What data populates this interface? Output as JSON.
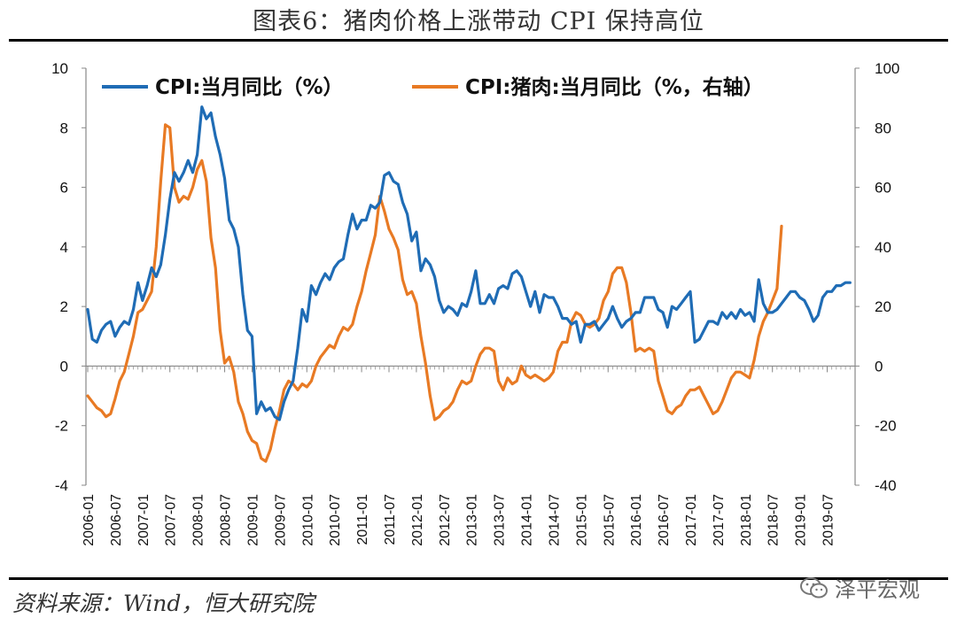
{
  "title": "图表6：猪肉价格上涨带动 CPI 保持高位",
  "source": "资料来源：Wind，恒大研究院",
  "watermark": "泽平宏观",
  "chart_data": {
    "type": "line",
    "x_ticks": [
      "2006-01",
      "2006-07",
      "2007-01",
      "2007-07",
      "2008-01",
      "2008-07",
      "2009-01",
      "2009-07",
      "2010-01",
      "2010-07",
      "2011-01",
      "2011-07",
      "2012-01",
      "2012-07",
      "2013-01",
      "2013-07",
      "2014-01",
      "2014-07",
      "2015-01",
      "2015-07",
      "2016-01",
      "2016-07",
      "2017-01",
      "2017-07",
      "2018-01",
      "2018-07",
      "2019-01",
      "2019-07"
    ],
    "y_left": {
      "range": [
        -4,
        10
      ],
      "ticks": [
        "10",
        "8",
        "6",
        "4",
        "2",
        "0",
        "-2",
        "-4"
      ]
    },
    "y_right": {
      "range": [
        -40,
        100
      ],
      "ticks": [
        "100",
        "80",
        "60",
        "40",
        "20",
        "0",
        "-20",
        "-40"
      ]
    },
    "legend_placement": "top",
    "series": [
      {
        "name": "CPI:当月同比（%）",
        "axis": "left",
        "color": "#1f6cb5",
        "values": [
          1.9,
          0.9,
          0.8,
          1.2,
          1.4,
          1.5,
          1.0,
          1.3,
          1.5,
          1.4,
          1.9,
          2.8,
          2.2,
          2.7,
          3.3,
          3.0,
          3.4,
          4.4,
          5.6,
          6.5,
          6.2,
          6.5,
          6.9,
          6.5,
          7.1,
          8.7,
          8.3,
          8.5,
          7.7,
          7.1,
          6.3,
          4.9,
          4.6,
          4.0,
          2.4,
          1.2,
          1.0,
          -1.6,
          -1.2,
          -1.5,
          -1.4,
          -1.7,
          -1.8,
          -1.2,
          -0.8,
          -0.5,
          0.6,
          1.9,
          1.5,
          2.7,
          2.4,
          2.8,
          3.1,
          2.9,
          3.3,
          3.5,
          3.6,
          4.4,
          5.1,
          4.6,
          4.9,
          4.9,
          5.4,
          5.3,
          5.5,
          6.4,
          6.5,
          6.2,
          6.1,
          5.5,
          5.1,
          4.2,
          4.5,
          3.2,
          3.6,
          3.4,
          3.0,
          2.2,
          1.8,
          2.0,
          1.9,
          1.7,
          2.1,
          2.0,
          2.5,
          3.2,
          2.1,
          2.1,
          2.4,
          2.1,
          2.6,
          2.7,
          2.6,
          3.1,
          3.2,
          3.0,
          2.5,
          2.0,
          2.5,
          1.8,
          2.4,
          2.3,
          2.3,
          2.0,
          1.6,
          1.6,
          1.4,
          1.5,
          0.8,
          1.4,
          1.4,
          1.5,
          1.2,
          1.4,
          1.6,
          2.0,
          1.6,
          1.3,
          1.5,
          1.6,
          1.8,
          1.8,
          2.3,
          2.3,
          2.3,
          1.9,
          1.8,
          1.3,
          2.0,
          1.9,
          2.1,
          2.3,
          2.5,
          0.8,
          0.9,
          1.2,
          1.5,
          1.5,
          1.4,
          1.8,
          1.6,
          1.8,
          1.6,
          1.9,
          1.7,
          1.8,
          1.5,
          2.9,
          2.1,
          1.8,
          1.8,
          1.9,
          2.1,
          2.3,
          2.5,
          2.5,
          2.3,
          2.2,
          1.9,
          1.5,
          1.7,
          2.3,
          2.5,
          2.5,
          2.7,
          2.7,
          2.8,
          2.8
        ],
        "start": "2006-01",
        "frequency": "monthly"
      },
      {
        "name": "CPI:猪肉:当月同比（%，右轴）",
        "axis": "right",
        "color": "#e87a24",
        "values": [
          -10,
          -12,
          -14,
          -15,
          -17,
          -16,
          -11,
          -5,
          -2,
          4,
          10,
          18,
          19,
          22,
          25,
          40,
          62,
          81,
          80,
          60,
          55,
          57,
          56,
          60,
          66,
          69,
          62,
          43,
          33,
          12,
          1,
          3,
          -2,
          -12,
          -16,
          -22,
          -25,
          -26,
          -31,
          -32,
          -28,
          -21,
          -15,
          -8,
          -5,
          -6,
          -8,
          -6,
          -7,
          -5,
          0,
          3,
          5,
          7,
          6,
          10,
          13,
          12,
          14,
          20,
          25,
          32,
          38,
          44,
          57,
          52,
          46,
          43,
          39,
          29,
          24,
          25,
          21,
          10,
          1,
          -10,
          -18,
          -17,
          -15,
          -14,
          -12,
          -8,
          -5,
          -6,
          -5,
          0,
          4,
          6,
          6,
          5,
          -5,
          -8,
          -4,
          -6,
          -5,
          0,
          -3,
          -4,
          -3,
          -4,
          -5,
          -4,
          -2,
          5,
          8,
          8,
          15,
          18,
          17,
          14,
          13,
          14,
          16,
          22,
          25,
          31,
          33,
          33,
          28,
          18,
          5,
          6,
          5,
          6,
          5,
          -5,
          -10,
          -15,
          -16,
          -14,
          -13,
          -10,
          -8,
          -8,
          -7,
          -10,
          -13,
          -16,
          -15,
          -12,
          -8,
          -4,
          -2,
          -2,
          -3,
          -4,
          2,
          10,
          15,
          18,
          22,
          26,
          47
        ],
        "start": "2006-01",
        "frequency": "monthly"
      }
    ]
  }
}
